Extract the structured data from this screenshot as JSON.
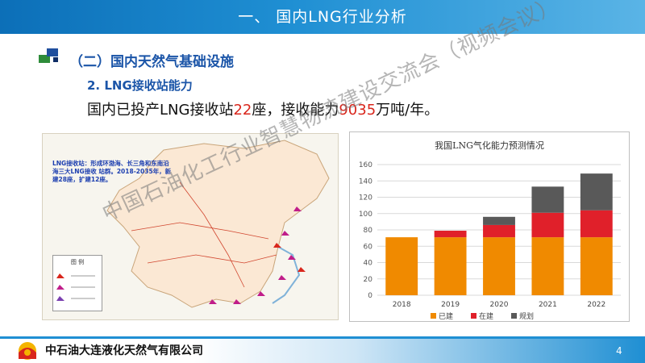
{
  "header": {
    "title": "一、 国内LNG行业分析"
  },
  "section": {
    "title": "（二）国内天然气基础设施",
    "subtitle": "2. LNG接收站能力",
    "line_prefix": "国内已投产LNG接收站",
    "line_count": "22",
    "line_mid": "座，接收能力",
    "line_capacity": "9035",
    "line_suffix": "万吨/年。"
  },
  "map": {
    "note": "LNG接收站：形成环渤海、长三角和东南沿海三大LNG接收 站群。2018-2035年，新建28座，扩建12座。",
    "legend_title": "图  例"
  },
  "chart_data": {
    "type": "bar",
    "title": "我国LNG气化能力预测情况",
    "categories": [
      "2018",
      "2019",
      "2020",
      "2021",
      "2022"
    ],
    "series": [
      {
        "name": "已建",
        "values": [
          71,
          71,
          71,
          71,
          71
        ],
        "color": "#f08a00"
      },
      {
        "name": "在建",
        "values": [
          0,
          8,
          15,
          30,
          33
        ],
        "color": "#e0202a"
      },
      {
        "name": "规划",
        "values": [
          0,
          0,
          10,
          32,
          45
        ],
        "color": "#595959"
      }
    ],
    "ylim": [
      0,
      160
    ],
    "yticks": [
      0,
      20,
      40,
      60,
      80,
      100,
      120,
      140,
      160
    ],
    "grid": true,
    "legend": "bottom"
  },
  "footer": {
    "company": "中石油大连液化天然气有限公司",
    "page": "4"
  },
  "watermark": {
    "text": "中国石油化工行业智慧物流建设交流会（视频会议）"
  }
}
